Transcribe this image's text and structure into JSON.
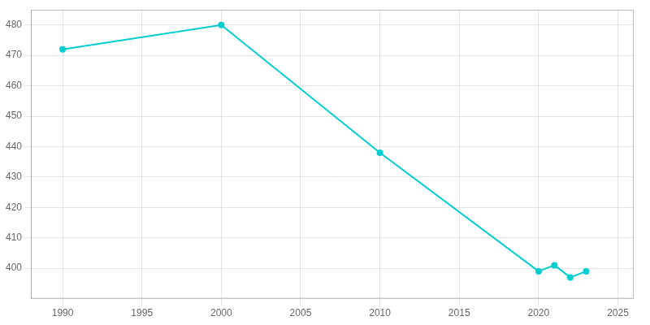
{
  "chart_data": {
    "type": "line",
    "x": [
      1990,
      2000,
      2010,
      2020,
      2021,
      2022,
      2023
    ],
    "values": [
      472,
      480,
      438,
      399,
      401,
      397,
      399
    ],
    "color": "#00CED1",
    "marker": "circle",
    "xlim": [
      1988,
      2026
    ],
    "xticks": [
      1990,
      1995,
      2000,
      2005,
      2010,
      2015,
      2020,
      2025
    ],
    "ylim": [
      390,
      485
    ],
    "yticks": [
      400,
      410,
      420,
      430,
      440,
      450,
      460,
      470,
      480
    ],
    "grid": true
  }
}
